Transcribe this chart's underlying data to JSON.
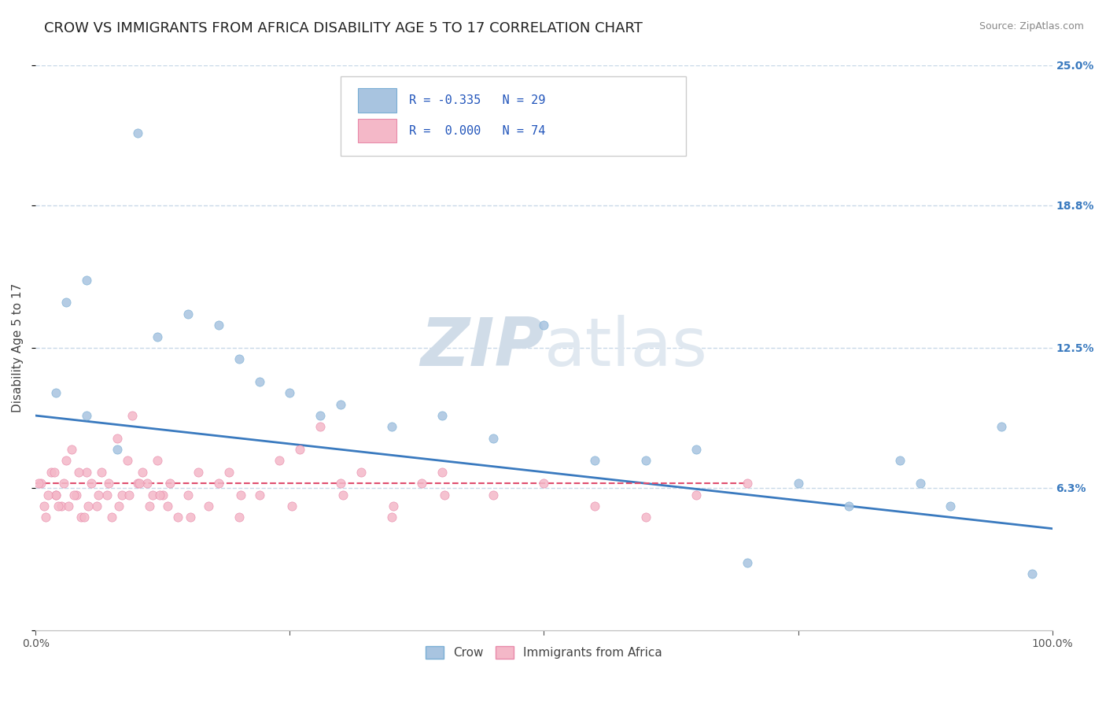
{
  "title": "CROW VS IMMIGRANTS FROM AFRICA DISABILITY AGE 5 TO 17 CORRELATION CHART",
  "source": "Source: ZipAtlas.com",
  "ylabel": "Disability Age 5 to 17",
  "xlim": [
    0.0,
    100.0
  ],
  "ylim": [
    0.0,
    25.0
  ],
  "yticks": [
    0.0,
    6.3,
    12.5,
    18.8,
    25.0
  ],
  "ytick_labels": [
    "",
    "6.3%",
    "12.5%",
    "18.8%",
    "25.0%"
  ],
  "crow_color": "#a8c4e0",
  "crow_edge_color": "#7aaed4",
  "africa_color": "#f4b8c8",
  "africa_edge_color": "#e88aaa",
  "trend_crow_color": "#3a7abf",
  "trend_africa_color": "#e05070",
  "grid_color": "#c8d8e8",
  "watermark_color": "#d0dce8",
  "legend_color": "#2255bb",
  "crow_R": -0.335,
  "crow_N": 29,
  "africa_R": 0.0,
  "africa_N": 74,
  "crow_scatter_x": [
    2,
    3,
    5,
    8,
    10,
    12,
    15,
    18,
    20,
    22,
    25,
    28,
    30,
    35,
    40,
    45,
    50,
    55,
    60,
    65,
    70,
    75,
    80,
    85,
    87,
    90,
    95,
    98,
    5
  ],
  "crow_scatter_y": [
    10.5,
    14.5,
    15.5,
    8.0,
    22.0,
    13.0,
    14.0,
    13.5,
    12.0,
    11.0,
    10.5,
    9.5,
    10.0,
    9.0,
    9.5,
    8.5,
    13.5,
    7.5,
    7.5,
    8.0,
    3.0,
    6.5,
    5.5,
    7.5,
    6.5,
    5.5,
    9.0,
    2.5,
    9.5
  ],
  "africa_scatter_x": [
    0.5,
    1.0,
    1.5,
    2.0,
    2.5,
    3.0,
    3.5,
    4.0,
    4.5,
    5.0,
    5.5,
    6.0,
    6.5,
    7.0,
    7.5,
    8.0,
    8.5,
    9.0,
    9.5,
    10.0,
    10.5,
    11.0,
    11.5,
    12.0,
    12.5,
    13.0,
    14.0,
    15.0,
    16.0,
    17.0,
    18.0,
    19.0,
    20.0,
    22.0,
    24.0,
    26.0,
    28.0,
    30.0,
    32.0,
    35.0,
    38.0,
    40.0,
    45.0,
    50.0,
    55.0,
    60.0,
    65.0,
    70.0,
    2.0,
    2.8,
    3.2,
    3.8,
    4.2,
    5.2,
    6.2,
    7.2,
    8.2,
    9.2,
    10.2,
    11.2,
    12.2,
    13.2,
    15.2,
    20.2,
    25.2,
    30.2,
    35.2,
    40.2,
    0.3,
    0.8,
    1.2,
    1.8,
    2.2,
    4.8
  ],
  "africa_scatter_y": [
    6.5,
    5.0,
    7.0,
    6.0,
    5.5,
    7.5,
    8.0,
    6.0,
    5.0,
    7.0,
    6.5,
    5.5,
    7.0,
    6.0,
    5.0,
    8.5,
    6.0,
    7.5,
    9.5,
    6.5,
    7.0,
    6.5,
    6.0,
    7.5,
    6.0,
    5.5,
    5.0,
    6.0,
    7.0,
    5.5,
    6.5,
    7.0,
    5.0,
    6.0,
    7.5,
    8.0,
    9.0,
    6.5,
    7.0,
    5.0,
    6.5,
    7.0,
    6.0,
    6.5,
    5.5,
    5.0,
    6.0,
    6.5,
    6.0,
    6.5,
    5.5,
    6.0,
    7.0,
    5.5,
    6.0,
    6.5,
    5.5,
    6.0,
    6.5,
    5.5,
    6.0,
    6.5,
    5.0,
    6.0,
    5.5,
    6.0,
    5.5,
    6.0,
    6.5,
    5.5,
    6.0,
    7.0,
    5.5,
    5.0
  ],
  "crow_trend_x": [
    0,
    100
  ],
  "crow_trend_y": [
    9.5,
    4.5
  ],
  "africa_trend_x": [
    0,
    70
  ],
  "africa_trend_y": [
    6.5,
    6.5
  ],
  "background_color": "#ffffff",
  "title_fontsize": 13,
  "axis_label_fontsize": 11,
  "tick_fontsize": 10,
  "marker_size": 65
}
